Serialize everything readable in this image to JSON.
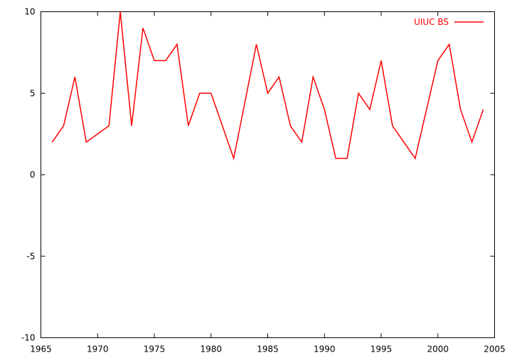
{
  "chart_data": {
    "type": "line",
    "title": "",
    "xlabel": "",
    "ylabel": "",
    "xlim": [
      1965,
      2005
    ],
    "ylim": [
      -10,
      10
    ],
    "x_ticks": [
      1965,
      1970,
      1975,
      1980,
      1985,
      1990,
      1995,
      2000,
      2005
    ],
    "x_tick_labels": [
      "1965",
      "1970",
      "1975",
      "1980",
      "1985",
      "1990",
      "1995",
      "2000",
      "2005"
    ],
    "y_ticks": [
      -10,
      -5,
      0,
      5,
      10
    ],
    "y_tick_labels": [
      "-10",
      "-5",
      "0",
      "5",
      "10"
    ],
    "grid": false,
    "legend_position": "top-right",
    "series": [
      {
        "name": "UIUC BS",
        "color": "#ff0000",
        "x": [
          1966,
          1967,
          1968,
          1969,
          1970,
          1971,
          1972,
          1973,
          1974,
          1975,
          1976,
          1977,
          1978,
          1979,
          1980,
          1981,
          1982,
          1983,
          1984,
          1985,
          1986,
          1987,
          1988,
          1989,
          1990,
          1991,
          1992,
          1993,
          1994,
          1995,
          1996,
          1997,
          1998,
          1999,
          2000,
          2001,
          2002,
          2003,
          2004
        ],
        "y": [
          2,
          3,
          6,
          2,
          2.5,
          3,
          10,
          3,
          9,
          7,
          7,
          8,
          3,
          5,
          5,
          3,
          1,
          4.5,
          8,
          5,
          6,
          3,
          2,
          6,
          4,
          1,
          1,
          5,
          4,
          7,
          3,
          2,
          1,
          4,
          7,
          8,
          4,
          2,
          4
        ]
      }
    ]
  }
}
